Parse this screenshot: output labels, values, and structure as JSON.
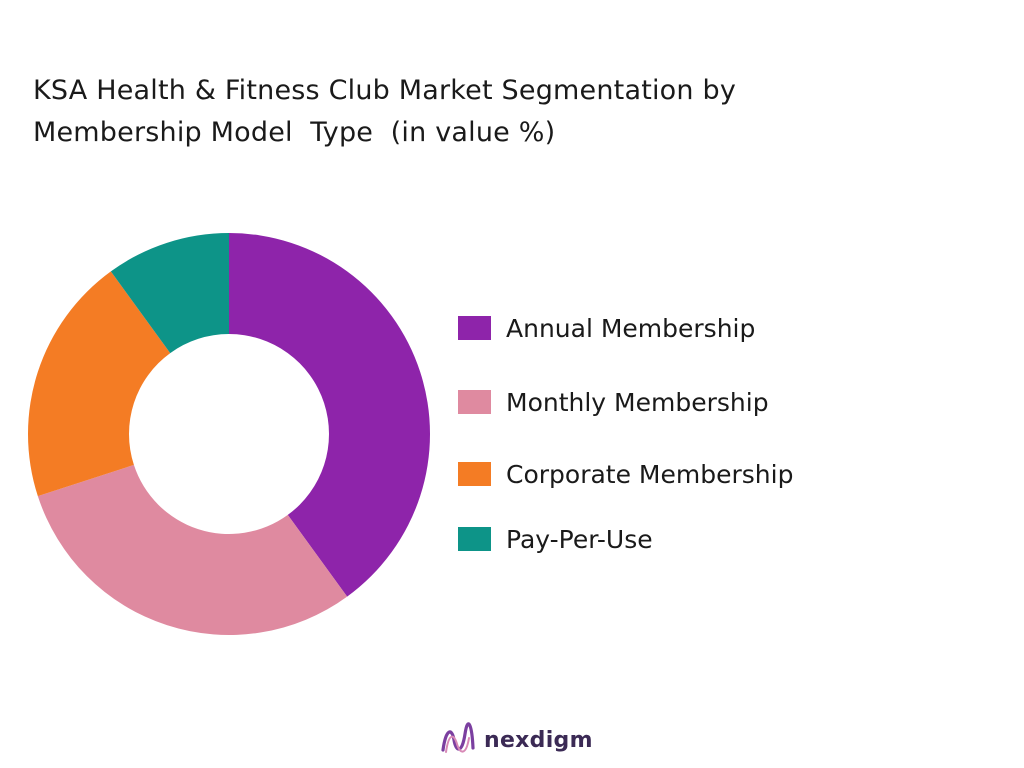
{
  "chart_data": {
    "type": "pie",
    "title": "KSA Health & Fitness Club Market Segmentation by\nMembership Model  Type  (in value %)",
    "categories": [
      "Annual Membership",
      "Monthly Membership",
      "Corporate Membership",
      "Pay-Per-Use"
    ],
    "values": [
      40,
      30,
      20,
      10
    ],
    "colors": [
      "#8e24aa",
      "#df8aa0",
      "#f47c24",
      "#0d9488"
    ],
    "donut": true,
    "legend": "right"
  },
  "brand": {
    "name": "nexdigm",
    "icon": "nexdigm-logo-icon"
  }
}
